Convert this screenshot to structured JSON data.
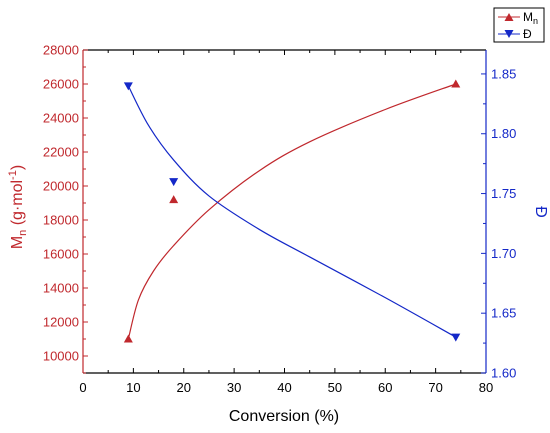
{
  "chart_data": {
    "type": "line",
    "xlabel": "Conversion (%)",
    "xlim": [
      0,
      80
    ],
    "x_ticks": [
      "0",
      "10",
      "20",
      "30",
      "40",
      "50",
      "60",
      "70",
      "80"
    ],
    "grid": false,
    "legend_position": "top-right outside",
    "series": [
      {
        "name": "Mn",
        "axis": "left",
        "color": "#c0282d",
        "marker": "triangle-up",
        "points": [
          {
            "x": 9,
            "y": 11000
          },
          {
            "x": 18,
            "y": 19200
          },
          {
            "x": 74,
            "y": 26000
          }
        ],
        "fit_curve": [
          {
            "x": 9,
            "y": 11000
          },
          {
            "x": 11,
            "y": 13300
          },
          {
            "x": 14,
            "y": 15000
          },
          {
            "x": 18,
            "y": 16500
          },
          {
            "x": 25,
            "y": 18600
          },
          {
            "x": 35,
            "y": 20900
          },
          {
            "x": 45,
            "y": 22600
          },
          {
            "x": 60,
            "y": 24500
          },
          {
            "x": 74,
            "y": 26000
          }
        ]
      },
      {
        "name": "Đ",
        "axis": "right",
        "color": "#1428c8",
        "marker": "triangle-down",
        "points": [
          {
            "x": 9,
            "y": 1.84
          },
          {
            "x": 18,
            "y": 1.76
          },
          {
            "x": 74,
            "y": 1.63
          }
        ],
        "fit_curve": [
          {
            "x": 9,
            "y": 1.84
          },
          {
            "x": 13,
            "y": 1.807
          },
          {
            "x": 18,
            "y": 1.778
          },
          {
            "x": 25,
            "y": 1.748
          },
          {
            "x": 35,
            "y": 1.72
          },
          {
            "x": 45,
            "y": 1.697
          },
          {
            "x": 60,
            "y": 1.663
          },
          {
            "x": 74,
            "y": 1.63
          }
        ]
      }
    ],
    "y_left": {
      "label_main": "M",
      "label_sub": "n",
      "label_unit": " (g·mol",
      "label_exp": "-1",
      "label_end": ")",
      "ylim": [
        9000,
        28000
      ],
      "ticks": [
        "10000",
        "12000",
        "14000",
        "16000",
        "18000",
        "20000",
        "22000",
        "24000",
        "26000",
        "28000"
      ],
      "color": "#c0282d"
    },
    "y_right": {
      "label": "Đ",
      "ylim": [
        1.6,
        1.87
      ],
      "ticks": [
        "1.60",
        "1.65",
        "1.70",
        "1.75",
        "1.80",
        "1.85"
      ],
      "color": "#1428c8"
    },
    "legend": [
      {
        "main": "M",
        "sub": "n"
      },
      {
        "main": "Đ",
        "sub": ""
      }
    ]
  }
}
